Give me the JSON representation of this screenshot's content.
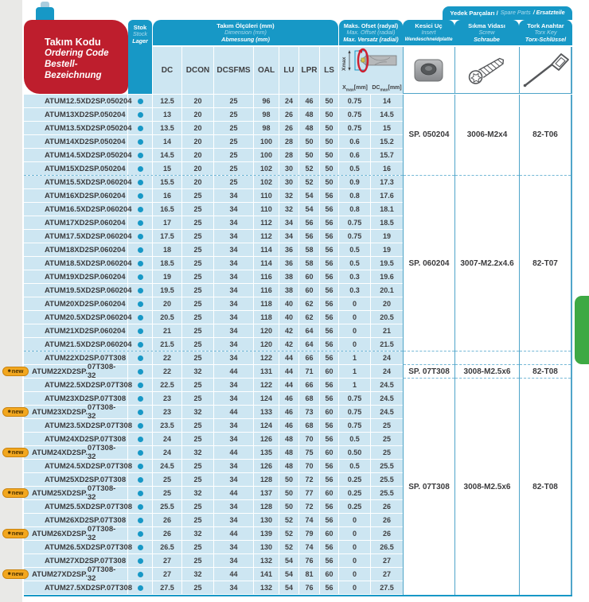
{
  "header": {
    "ordering_code": {
      "tr": "Takım Kodu",
      "en": "Ordering Code",
      "de": "Bestell-Bezeichnung"
    },
    "stock": {
      "tr": "Stok",
      "en": "Stock",
      "de": "Lager"
    },
    "dimensions": {
      "tr": "Takım Ölçüleri (mm)",
      "en": "Dimension (mm)",
      "de": "Abmessung (mm)"
    },
    "dim_columns": [
      "DC",
      "DCON",
      "DCSFMS",
      "OAL",
      "LU",
      "LPR",
      "LS"
    ],
    "offset": {
      "tr": "Maks. Ofset (radyal)",
      "en": "Max. Offset (radial)",
      "de": "Max. Versatz (radial)"
    },
    "offset_columns": {
      "x": {
        "base": "X",
        "sub": "max",
        "unit": "[mm]"
      },
      "dc": {
        "base": "DC",
        "sub": "max",
        "unit": "[mm]"
      }
    },
    "diagram_xmax": "Xmax",
    "insert": {
      "tr": "Kesici Uç",
      "en": "Insert",
      "de": "Wendeschneidplatte"
    },
    "spare_parts": {
      "tr": "Yedek Parçaları /",
      "en": "Spare Parts",
      "de": "/ Ersatzteile"
    },
    "screw": {
      "tr": "Sıkma Vidası",
      "en": "Screw",
      "de": "Schraube"
    },
    "torx": {
      "tr": "Tork Anahtar",
      "en": "Torx Key",
      "de": "Torx-Schlüssel"
    }
  },
  "badge_new": "new",
  "rows": [
    {
      "code": [
        "ATUM",
        "12.5XD2",
        "SP.",
        "050204"
      ],
      "new": false,
      "stock": true,
      "values": [
        "12.5",
        "20",
        "25",
        "96",
        "24",
        "46",
        "50",
        "0.75",
        "14"
      ]
    },
    {
      "code": [
        "ATUM",
        "13XD2",
        "SP.",
        "050204"
      ],
      "new": false,
      "stock": true,
      "values": [
        "13",
        "20",
        "25",
        "98",
        "26",
        "48",
        "50",
        "0.75",
        "14.5"
      ]
    },
    {
      "code": [
        "ATUM",
        "13.5XD2",
        "SP.",
        "050204"
      ],
      "new": false,
      "stock": true,
      "values": [
        "13.5",
        "20",
        "25",
        "98",
        "26",
        "48",
        "50",
        "0.75",
        "15"
      ]
    },
    {
      "code": [
        "ATUM",
        "14XD2",
        "SP.",
        "050204"
      ],
      "new": false,
      "stock": true,
      "values": [
        "14",
        "20",
        "25",
        "100",
        "28",
        "50",
        "50",
        "0.6",
        "15.2"
      ]
    },
    {
      "code": [
        "ATUM",
        "14.5XD2",
        "SP.",
        "050204"
      ],
      "new": false,
      "stock": true,
      "values": [
        "14.5",
        "20",
        "25",
        "100",
        "28",
        "50",
        "50",
        "0.6",
        "15.7"
      ]
    },
    {
      "code": [
        "ATUM",
        "15XD2",
        "SP.",
        "050204"
      ],
      "new": false,
      "stock": true,
      "values": [
        "15",
        "20",
        "25",
        "102",
        "30",
        "52",
        "50",
        "0.5",
        "16"
      ]
    },
    {
      "code": [
        "ATUM",
        "15.5XD2",
        "SP.",
        "060204"
      ],
      "new": false,
      "stock": true,
      "values": [
        "15.5",
        "20",
        "25",
        "102",
        "30",
        "52",
        "50",
        "0.9",
        "17.3"
      ]
    },
    {
      "code": [
        "ATUM",
        "16XD2",
        "SP.",
        "060204"
      ],
      "new": false,
      "stock": true,
      "values": [
        "16",
        "25",
        "34",
        "110",
        "32",
        "54",
        "56",
        "0.8",
        "17.6"
      ]
    },
    {
      "code": [
        "ATUM",
        "16.5XD2",
        "SP.",
        "060204"
      ],
      "new": false,
      "stock": true,
      "values": [
        "16.5",
        "25",
        "34",
        "110",
        "32",
        "54",
        "56",
        "0.8",
        "18.1"
      ]
    },
    {
      "code": [
        "ATUM",
        "17XD2",
        "SP.",
        "060204"
      ],
      "new": false,
      "stock": true,
      "values": [
        "17",
        "25",
        "34",
        "112",
        "34",
        "56",
        "56",
        "0.75",
        "18.5"
      ]
    },
    {
      "code": [
        "ATUM",
        "17.5XD2",
        "SP.",
        "060204"
      ],
      "new": false,
      "stock": true,
      "values": [
        "17.5",
        "25",
        "34",
        "112",
        "34",
        "56",
        "56",
        "0.75",
        "19"
      ]
    },
    {
      "code": [
        "ATUM",
        "18XD2",
        "SP.",
        "060204"
      ],
      "new": false,
      "stock": true,
      "values": [
        "18",
        "25",
        "34",
        "114",
        "36",
        "58",
        "56",
        "0.5",
        "19"
      ]
    },
    {
      "code": [
        "ATUM",
        "18.5XD2",
        "SP.",
        "060204"
      ],
      "new": false,
      "stock": true,
      "values": [
        "18.5",
        "25",
        "34",
        "114",
        "36",
        "58",
        "56",
        "0.5",
        "19.5"
      ]
    },
    {
      "code": [
        "ATUM",
        "19XD2",
        "SP.",
        "060204"
      ],
      "new": false,
      "stock": true,
      "values": [
        "19",
        "25",
        "34",
        "116",
        "38",
        "60",
        "56",
        "0.3",
        "19.6"
      ]
    },
    {
      "code": [
        "ATUM",
        "19.5XD2",
        "SP.",
        "060204"
      ],
      "new": false,
      "stock": true,
      "values": [
        "19.5",
        "25",
        "34",
        "116",
        "38",
        "60",
        "56",
        "0.3",
        "20.1"
      ]
    },
    {
      "code": [
        "ATUM",
        "20XD2",
        "SP.",
        "060204"
      ],
      "new": false,
      "stock": true,
      "values": [
        "20",
        "25",
        "34",
        "118",
        "40",
        "62",
        "56",
        "0",
        "20"
      ]
    },
    {
      "code": [
        "ATUM",
        "20.5XD2",
        "SP.",
        "060204"
      ],
      "new": false,
      "stock": true,
      "values": [
        "20.5",
        "25",
        "34",
        "118",
        "40",
        "62",
        "56",
        "0",
        "20.5"
      ]
    },
    {
      "code": [
        "ATUM",
        "21XD2",
        "SP.",
        "060204"
      ],
      "new": false,
      "stock": true,
      "values": [
        "21",
        "25",
        "34",
        "120",
        "42",
        "64",
        "56",
        "0",
        "21"
      ]
    },
    {
      "code": [
        "ATUM",
        "21.5XD2",
        "SP.",
        "060204"
      ],
      "new": false,
      "stock": true,
      "values": [
        "21.5",
        "25",
        "34",
        "120",
        "42",
        "64",
        "56",
        "0",
        "21.5"
      ]
    },
    {
      "code": [
        "ATUM",
        "22XD2",
        "SP.",
        "07T308"
      ],
      "new": false,
      "stock": true,
      "values": [
        "22",
        "25",
        "34",
        "122",
        "44",
        "66",
        "56",
        "1",
        "24"
      ]
    },
    {
      "code": [
        "ATUM",
        "22XD2",
        "SP.",
        "07T308-32"
      ],
      "new": true,
      "stock": true,
      "values": [
        "22",
        "32",
        "44",
        "131",
        "44",
        "71",
        "60",
        "1",
        "24"
      ]
    },
    {
      "code": [
        "ATUM",
        "22.5XD2",
        "SP.",
        "07T308"
      ],
      "new": false,
      "stock": true,
      "values": [
        "22.5",
        "25",
        "34",
        "122",
        "44",
        "66",
        "56",
        "1",
        "24.5"
      ]
    },
    {
      "code": [
        "ATUM",
        "23XD2",
        "SP.",
        "07T308"
      ],
      "new": false,
      "stock": true,
      "values": [
        "23",
        "25",
        "34",
        "124",
        "46",
        "68",
        "56",
        "0.75",
        "24.5"
      ]
    },
    {
      "code": [
        "ATUM",
        "23XD2",
        "SP.",
        "07T308-32"
      ],
      "new": true,
      "stock": true,
      "values": [
        "23",
        "32",
        "44",
        "133",
        "46",
        "73",
        "60",
        "0.75",
        "24.5"
      ]
    },
    {
      "code": [
        "ATUM",
        "23.5XD2",
        "SP.",
        "07T308"
      ],
      "new": false,
      "stock": true,
      "values": [
        "23.5",
        "25",
        "34",
        "124",
        "46",
        "68",
        "56",
        "0.75",
        "25"
      ]
    },
    {
      "code": [
        "ATUM",
        "24XD2",
        "SP.",
        "07T308"
      ],
      "new": false,
      "stock": true,
      "values": [
        "24",
        "25",
        "34",
        "126",
        "48",
        "70",
        "56",
        "0.5",
        "25"
      ]
    },
    {
      "code": [
        "ATUM",
        "24XD2",
        "SP.",
        "07T308-32"
      ],
      "new": true,
      "stock": true,
      "values": [
        "24",
        "32",
        "44",
        "135",
        "48",
        "75",
        "60",
        "0.50",
        "25"
      ]
    },
    {
      "code": [
        "ATUM",
        "24.5XD2",
        "SP.",
        "07T308"
      ],
      "new": false,
      "stock": true,
      "values": [
        "24.5",
        "25",
        "34",
        "126",
        "48",
        "70",
        "56",
        "0.5",
        "25.5"
      ]
    },
    {
      "code": [
        "ATUM",
        "25XD2",
        "SP.",
        "07T308"
      ],
      "new": false,
      "stock": true,
      "values": [
        "25",
        "25",
        "34",
        "128",
        "50",
        "72",
        "56",
        "0.25",
        "25.5"
      ]
    },
    {
      "code": [
        "ATUM",
        "25XD2",
        "SP.",
        "07T308-32"
      ],
      "new": true,
      "stock": true,
      "values": [
        "25",
        "32",
        "44",
        "137",
        "50",
        "77",
        "60",
        "0.25",
        "25.5"
      ]
    },
    {
      "code": [
        "ATUM",
        "25.5XD2",
        "SP.",
        "07T308"
      ],
      "new": false,
      "stock": true,
      "values": [
        "25.5",
        "25",
        "34",
        "128",
        "50",
        "72",
        "56",
        "0.25",
        "26"
      ]
    },
    {
      "code": [
        "ATUM",
        "26XD2",
        "SP.",
        "07T308"
      ],
      "new": false,
      "stock": true,
      "values": [
        "26",
        "25",
        "34",
        "130",
        "52",
        "74",
        "56",
        "0",
        "26"
      ]
    },
    {
      "code": [
        "ATUM",
        "26XD2",
        "SP.",
        "07T308-32"
      ],
      "new": true,
      "stock": true,
      "values": [
        "26",
        "32",
        "44",
        "139",
        "52",
        "79",
        "60",
        "0",
        "26"
      ]
    },
    {
      "code": [
        "ATUM",
        "26.5XD2",
        "SP.",
        "07T308"
      ],
      "new": false,
      "stock": true,
      "values": [
        "26.5",
        "25",
        "34",
        "130",
        "52",
        "74",
        "56",
        "0",
        "26.5"
      ]
    },
    {
      "code": [
        "ATUM",
        "27XD2",
        "SP.",
        "07T308"
      ],
      "new": false,
      "stock": true,
      "values": [
        "27",
        "25",
        "34",
        "132",
        "54",
        "76",
        "56",
        "0",
        "27"
      ]
    },
    {
      "code": [
        "ATUM",
        "27XD2",
        "SP.",
        "07T308-32"
      ],
      "new": true,
      "stock": true,
      "values": [
        "27",
        "32",
        "44",
        "141",
        "54",
        "81",
        "60",
        "0",
        "27"
      ]
    },
    {
      "code": [
        "ATUM",
        "27.5XD2",
        "SP.",
        "07T308"
      ],
      "new": false,
      "stock": true,
      "values": [
        "27.5",
        "25",
        "34",
        "132",
        "54",
        "76",
        "56",
        "0",
        "27.5"
      ]
    }
  ],
  "spare_groups": [
    {
      "rows": 6,
      "insert": "SP. 050204",
      "screw": "3006-M2x4",
      "torx": "82-T06"
    },
    {
      "rows": 13,
      "insert": "SP. 060204",
      "screw": "3007-M2.2x4.6",
      "torx": "82-T07"
    },
    {
      "rows": 1,
      "insert": "",
      "screw": "",
      "torx": ""
    },
    {
      "rows": 1,
      "insert": "SP. 07T308",
      "screw": "3008-M2.5x6",
      "torx": "82-T08"
    },
    {
      "rows": 16,
      "insert": "SP. 07T308",
      "screw": "3008-M2.5x6",
      "torx": "82-T08"
    }
  ],
  "colors": {
    "header_blue": "#1798c6",
    "row_blue": "#cde6f2",
    "red": "#be1e2d",
    "green_tab": "#3ea944",
    "badge": "#f2a71f",
    "badge_border": "#c9830f",
    "dot": "#1798c6",
    "dashed": "#74b8d6",
    "border_blue": "#4fa5c9",
    "light_italic": "#aedcee",
    "gray_strip": "#e9e9e7"
  }
}
